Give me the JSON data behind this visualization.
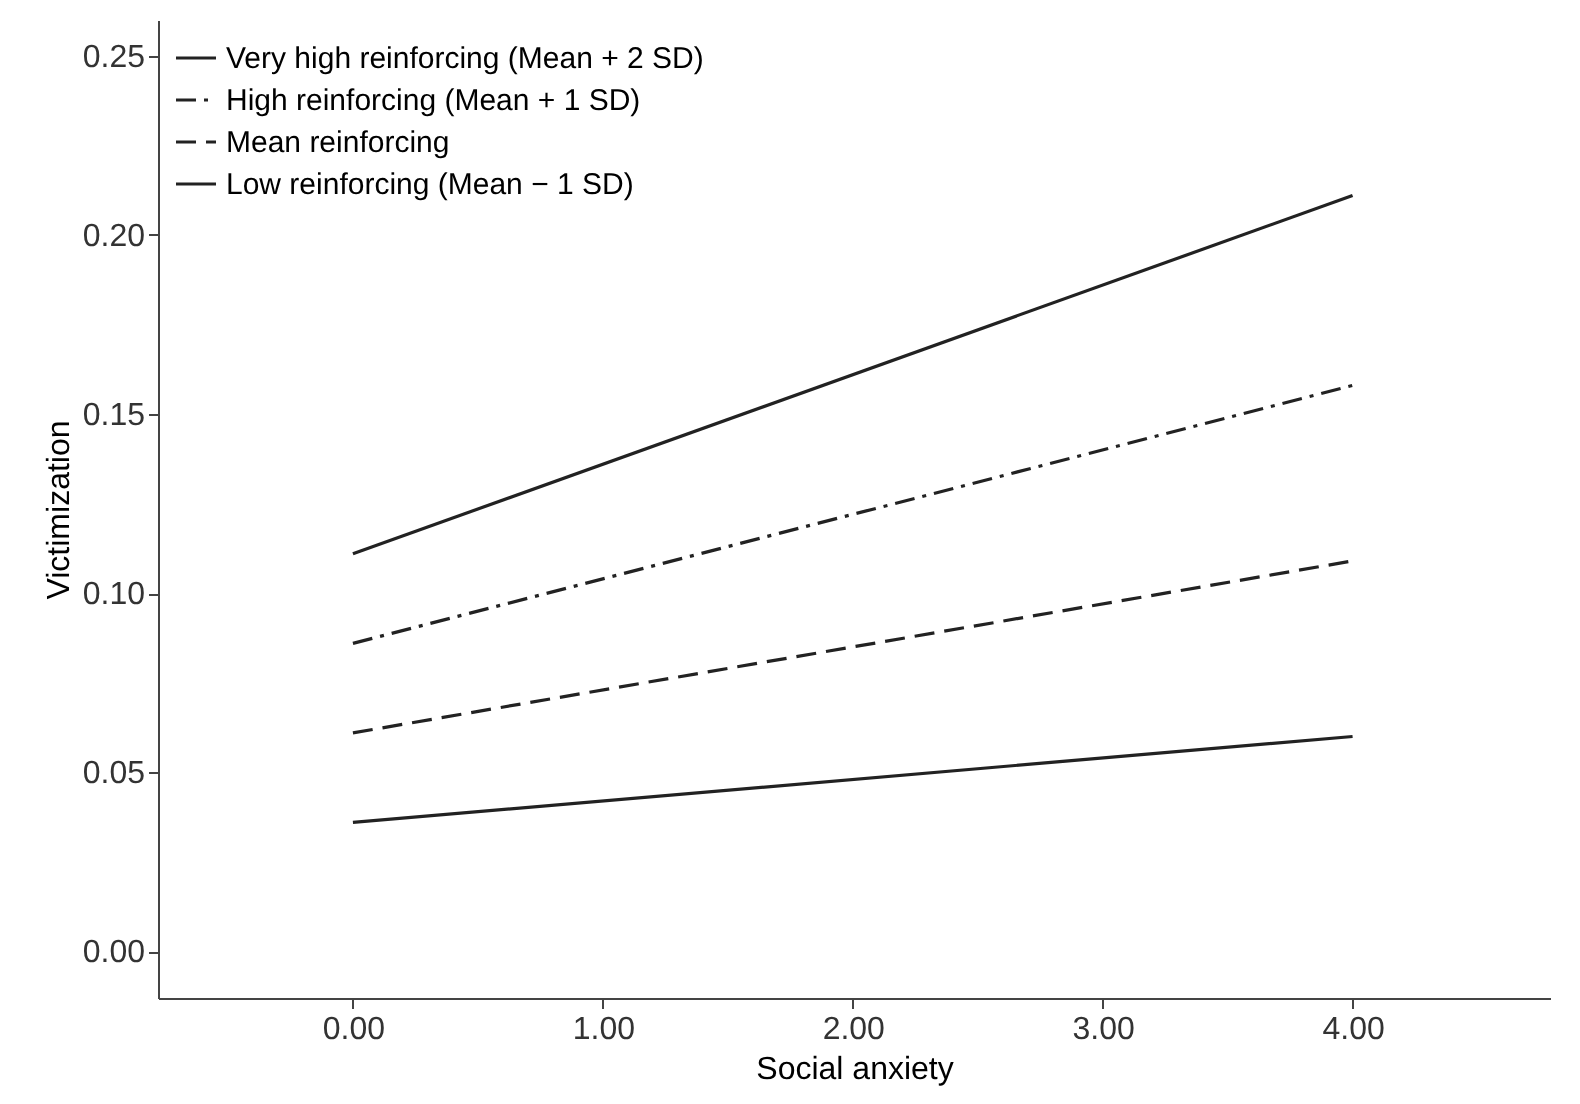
{
  "chart_data": {
    "type": "line",
    "xlabel": "Social anxiety",
    "ylabel": "Victimization",
    "x": [
      0,
      4
    ],
    "series": [
      {
        "name": "Very high reinforcing (Mean + 2 SD)",
        "color": "#222222",
        "line_style": "solid",
        "values": [
          0.111,
          0.211
        ]
      },
      {
        "name": "High reinforcing (Mean + 1 SD)",
        "color": "#222222",
        "line_style": "dashdot",
        "values": [
          0.086,
          0.158
        ]
      },
      {
        "name": "Mean reinforcing",
        "color": "#222222",
        "line_style": "dashed",
        "values": [
          0.061,
          0.109
        ]
      },
      {
        "name": "Low reinforcing (Mean − 1 SD)",
        "color": "#222222",
        "line_style": "solid",
        "values": [
          0.036,
          0.06
        ]
      }
    ],
    "xlim": [
      -0.78,
      4.79
    ],
    "xticks": [
      {
        "value": 0,
        "label": "0.00"
      },
      {
        "value": 1,
        "label": "1.00"
      },
      {
        "value": 2,
        "label": "2.00"
      },
      {
        "value": 3,
        "label": "3.00"
      },
      {
        "value": 4,
        "label": "4.00"
      }
    ],
    "ylim": [
      -0.013,
      0.26
    ],
    "yticks": [
      {
        "value": 0,
        "label": "0.00"
      },
      {
        "value": 0.05,
        "label": "0.05"
      },
      {
        "value": 0.1,
        "label": "0.10"
      },
      {
        "value": 0.15,
        "label": "0.15"
      },
      {
        "value": 0.2,
        "label": "0.20"
      },
      {
        "value": 0.25,
        "label": "0.25"
      }
    ],
    "grid": false,
    "legend": "top left",
    "marker": "none"
  }
}
